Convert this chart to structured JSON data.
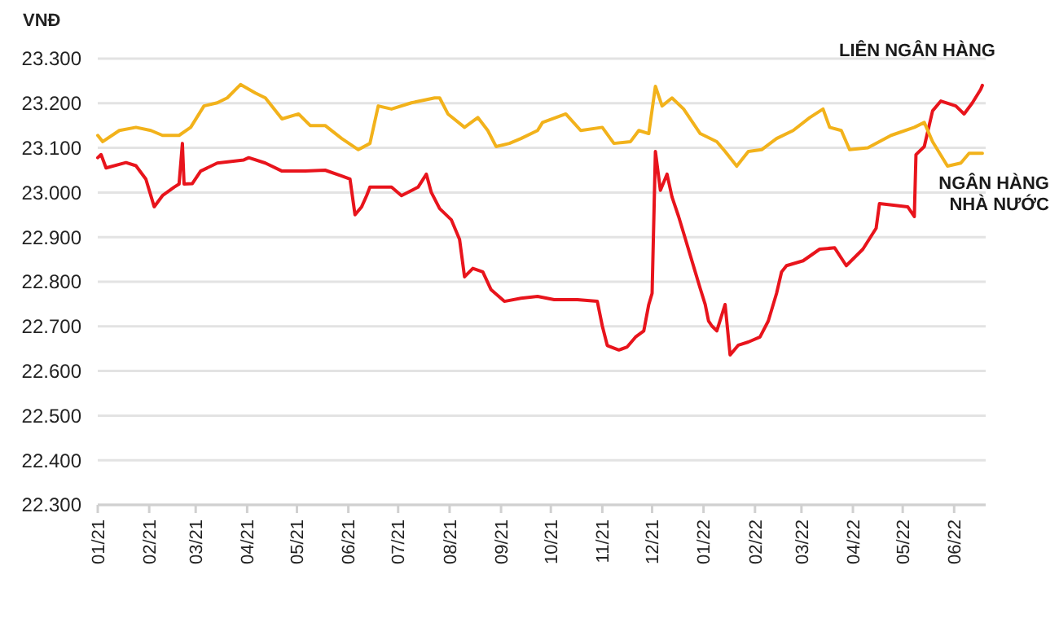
{
  "chart_data": {
    "type": "line",
    "ylabel": "VNĐ",
    "xlim": [
      "2021-01-01",
      "2022-06-20"
    ],
    "xticks": [
      {
        "value": "2021-01-01",
        "label": "01/21"
      },
      {
        "value": "2021-02-01",
        "label": "02/21"
      },
      {
        "value": "2021-03-01",
        "label": "03/21"
      },
      {
        "value": "2021-04-01",
        "label": "04/21"
      },
      {
        "value": "2021-05-01",
        "label": "05/21"
      },
      {
        "value": "2021-06-01",
        "label": "06/21"
      },
      {
        "value": "2021-07-01",
        "label": "07/21"
      },
      {
        "value": "2021-08-01",
        "label": "08/21"
      },
      {
        "value": "2021-09-01",
        "label": "09/21"
      },
      {
        "value": "2021-10-01",
        "label": "10/21"
      },
      {
        "value": "2021-11-01",
        "label": "11/21"
      },
      {
        "value": "2021-12-01",
        "label": "12/21"
      },
      {
        "value": "2022-01-01",
        "label": "01/22"
      },
      {
        "value": "2022-02-01",
        "label": "02/22"
      },
      {
        "value": "2022-03-01",
        "label": "03/22"
      },
      {
        "value": "2022-04-01",
        "label": "04/22"
      },
      {
        "value": "2022-05-01",
        "label": "05/22"
      },
      {
        "value": "2022-06-01",
        "label": "06/22"
      }
    ],
    "ylim": [
      22300,
      23300
    ],
    "yticks": [
      {
        "value": 22300,
        "label": "22.300"
      },
      {
        "value": 22400,
        "label": "22.400"
      },
      {
        "value": 22500,
        "label": "22.500"
      },
      {
        "value": 22600,
        "label": "22.600"
      },
      {
        "value": 22700,
        "label": "22.700"
      },
      {
        "value": 22800,
        "label": "22.800"
      },
      {
        "value": 22900,
        "label": "22.900"
      },
      {
        "value": 23000,
        "label": "23.000"
      },
      {
        "value": 23100,
        "label": "23.100"
      },
      {
        "value": 23200,
        "label": "23.200"
      },
      {
        "value": 23300,
        "label": "23.300"
      }
    ],
    "grid": "y",
    "legend": false,
    "series": [
      {
        "name": "LIÊN NGÂN HÀNG",
        "color": "#e8141c",
        "x": [
          "2021-01-01",
          "2021-01-03",
          "2021-01-06",
          "2021-01-18",
          "2021-01-24",
          "2021-01-30",
          "2021-02-04",
          "2021-02-09",
          "2021-02-16",
          "2021-02-19",
          "2021-02-21",
          "2021-02-22",
          "2021-02-27",
          "2021-03-04",
          "2021-03-14",
          "2021-03-30",
          "2021-04-02",
          "2021-04-12",
          "2021-04-22",
          "2021-05-06",
          "2021-05-18",
          "2021-05-28",
          "2021-06-02",
          "2021-06-05",
          "2021-06-09",
          "2021-06-12",
          "2021-06-14",
          "2021-06-27",
          "2021-07-03",
          "2021-07-13",
          "2021-07-18",
          "2021-07-21",
          "2021-07-26",
          "2021-08-02",
          "2021-08-07",
          "2021-08-10",
          "2021-08-15",
          "2021-08-21",
          "2021-08-26",
          "2021-09-03",
          "2021-09-13",
          "2021-09-23",
          "2021-10-03",
          "2021-10-17",
          "2021-10-29",
          "2021-11-01",
          "2021-11-04",
          "2021-11-11",
          "2021-11-16",
          "2021-11-21",
          "2021-11-26",
          "2021-11-29",
          "2021-12-01",
          "2021-12-03",
          "2021-12-06",
          "2021-12-10",
          "2021-12-13",
          "2021-12-17",
          "2021-12-20",
          "2021-12-27",
          "2021-12-30",
          "2022-01-02",
          "2022-01-04",
          "2022-01-06",
          "2022-01-09",
          "2022-01-14",
          "2022-01-17",
          "2022-01-22",
          "2022-01-28",
          "2022-02-04",
          "2022-02-09",
          "2022-02-14",
          "2022-02-17",
          "2022-02-20",
          "2022-03-02",
          "2022-03-12",
          "2022-03-21",
          "2022-03-28",
          "2022-04-07",
          "2022-04-15",
          "2022-04-17",
          "2022-05-04",
          "2022-05-08",
          "2022-05-09",
          "2022-05-14",
          "2022-05-19",
          "2022-05-24",
          "2022-06-02",
          "2022-06-07",
          "2022-06-12",
          "2022-06-17",
          "2022-06-18"
        ],
        "values": [
          23078,
          23085,
          23055,
          23067,
          23060,
          23030,
          22968,
          22993,
          23012,
          23019,
          23110,
          23019,
          23020,
          23048,
          23066,
          23073,
          23078,
          23066,
          23048,
          23048,
          23050,
          23037,
          23030,
          22950,
          22968,
          22993,
          23012,
          23012,
          22993,
          23012,
          23041,
          23000,
          22964,
          22939,
          22895,
          22811,
          22830,
          22822,
          22782,
          22756,
          22763,
          22767,
          22760,
          22760,
          22756,
          22701,
          22657,
          22647,
          22654,
          22676,
          22690,
          22749,
          22774,
          23092,
          23005,
          23041,
          22990,
          22946,
          22909,
          22822,
          22785,
          22749,
          22712,
          22701,
          22690,
          22749,
          22636,
          22658,
          22665,
          22676,
          22712,
          22774,
          22822,
          22836,
          22847,
          22873,
          22876,
          22836,
          22873,
          22920,
          22975,
          22968,
          22946,
          23085,
          23103,
          23183,
          23205,
          23194,
          23176,
          23201,
          23231,
          23240
        ]
      },
      {
        "name": "NGÂN HÀNG NHÀ NƯỚC",
        "color": "#f2b21b",
        "x": [
          "2021-01-01",
          "2021-01-04",
          "2021-01-14",
          "2021-01-24",
          "2021-02-02",
          "2021-02-09",
          "2021-02-19",
          "2021-02-26",
          "2021-03-06",
          "2021-03-14",
          "2021-03-20",
          "2021-03-28",
          "2021-04-06",
          "2021-04-12",
          "2021-04-22",
          "2021-05-02",
          "2021-05-09",
          "2021-05-18",
          "2021-05-28",
          "2021-06-07",
          "2021-06-14",
          "2021-06-19",
          "2021-06-27",
          "2021-07-09",
          "2021-07-23",
          "2021-07-26",
          "2021-07-31",
          "2021-08-10",
          "2021-08-18",
          "2021-08-24",
          "2021-08-29",
          "2021-09-06",
          "2021-09-13",
          "2021-09-23",
          "2021-09-26",
          "2021-10-10",
          "2021-10-19",
          "2021-11-01",
          "2021-11-08",
          "2021-11-18",
          "2021-11-23",
          "2021-11-29",
          "2021-12-03",
          "2021-12-07",
          "2021-12-13",
          "2021-12-20",
          "2021-12-30",
          "2022-01-09",
          "2022-01-14",
          "2022-01-21",
          "2022-01-28",
          "2022-02-05",
          "2022-02-14",
          "2022-02-24",
          "2022-03-06",
          "2022-03-14",
          "2022-03-18",
          "2022-03-25",
          "2022-03-30",
          "2022-04-10",
          "2022-04-24",
          "2022-05-08",
          "2022-05-14",
          "2022-05-19",
          "2022-05-28",
          "2022-06-05",
          "2022-06-10",
          "2022-06-18"
        ],
        "values": [
          23128,
          23114,
          23139,
          23146,
          23139,
          23128,
          23128,
          23146,
          23194,
          23201,
          23212,
          23242,
          23223,
          23212,
          23165,
          23176,
          23150,
          23150,
          23121,
          23096,
          23110,
          23194,
          23187,
          23201,
          23212,
          23212,
          23176,
          23146,
          23168,
          23139,
          23103,
          23110,
          23121,
          23139,
          23157,
          23176,
          23139,
          23146,
          23110,
          23114,
          23139,
          23132,
          23238,
          23194,
          23212,
          23187,
          23132,
          23114,
          23092,
          23059,
          23092,
          23096,
          23121,
          23139,
          23168,
          23187,
          23146,
          23139,
          23096,
          23100,
          23128,
          23146,
          23157,
          23114,
          23059,
          23066,
          23088,
          23088
        ]
      }
    ]
  }
}
